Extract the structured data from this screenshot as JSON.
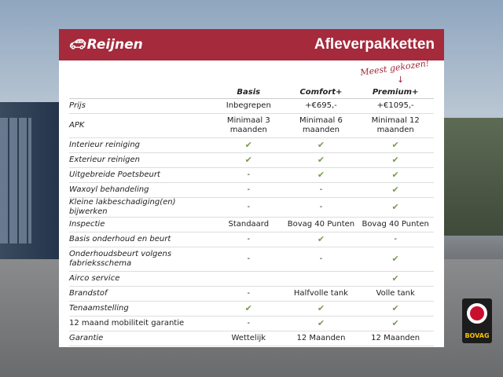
{
  "header": {
    "logo": "Reijnen",
    "title": "Afleverpakketten"
  },
  "annotation": "Meest gekozen!",
  "columns": [
    "Basis",
    "Comfort+",
    "Premium+"
  ],
  "rows": [
    {
      "label": "Prijs",
      "values": [
        "Inbegrepen",
        "+€695,-",
        "+€1095,-"
      ]
    },
    {
      "label": "APK",
      "values": [
        "Minimaal 3 maanden",
        "Minimaal 6 maanden",
        "Minimaal 12 maanden"
      ]
    },
    {
      "label": "Interieur reiniging",
      "values": [
        "✔",
        "✔",
        "✔"
      ]
    },
    {
      "label": "Exterieur reinigen",
      "values": [
        "✔",
        "✔",
        "✔"
      ]
    },
    {
      "label": "Uitgebreide Poetsbeurt",
      "values": [
        "-",
        "✔",
        "✔"
      ]
    },
    {
      "label": "Waxoyl behandeling",
      "values": [
        "-",
        "-",
        "✔"
      ]
    },
    {
      "label": "Kleine lakbeschadiging(en) bijwerken",
      "values": [
        "-",
        "-",
        "✔"
      ]
    },
    {
      "label": "Inspectie",
      "values": [
        "Standaard",
        "Bovag 40 Punten",
        "Bovag 40 Punten"
      ]
    },
    {
      "label": "Basis onderhoud en beurt",
      "values": [
        "-",
        "✔",
        "-"
      ]
    },
    {
      "label": "Onderhoudsbeurt volgens fabrieksschema",
      "values": [
        "-",
        "-",
        "✔"
      ]
    },
    {
      "label": "Airco service",
      "values": [
        "",
        "",
        "✔"
      ]
    },
    {
      "label": "Brandstof",
      "values": [
        "-",
        "Halfvolle tank",
        "Volle tank"
      ]
    },
    {
      "label": "Tenaamstelling",
      "values": [
        "✔",
        "✔",
        "✔"
      ]
    },
    {
      "label": "12 maand mobiliteit garantie",
      "values": [
        "-",
        "✔",
        "✔"
      ]
    },
    {
      "label": "Garantie",
      "values": [
        "Wettelijk",
        "12 Maanden",
        "12 Maanden"
      ]
    }
  ],
  "badge": "BOVAG",
  "colors": {
    "brand": "#a42a3c",
    "check": "#7a9a50"
  }
}
